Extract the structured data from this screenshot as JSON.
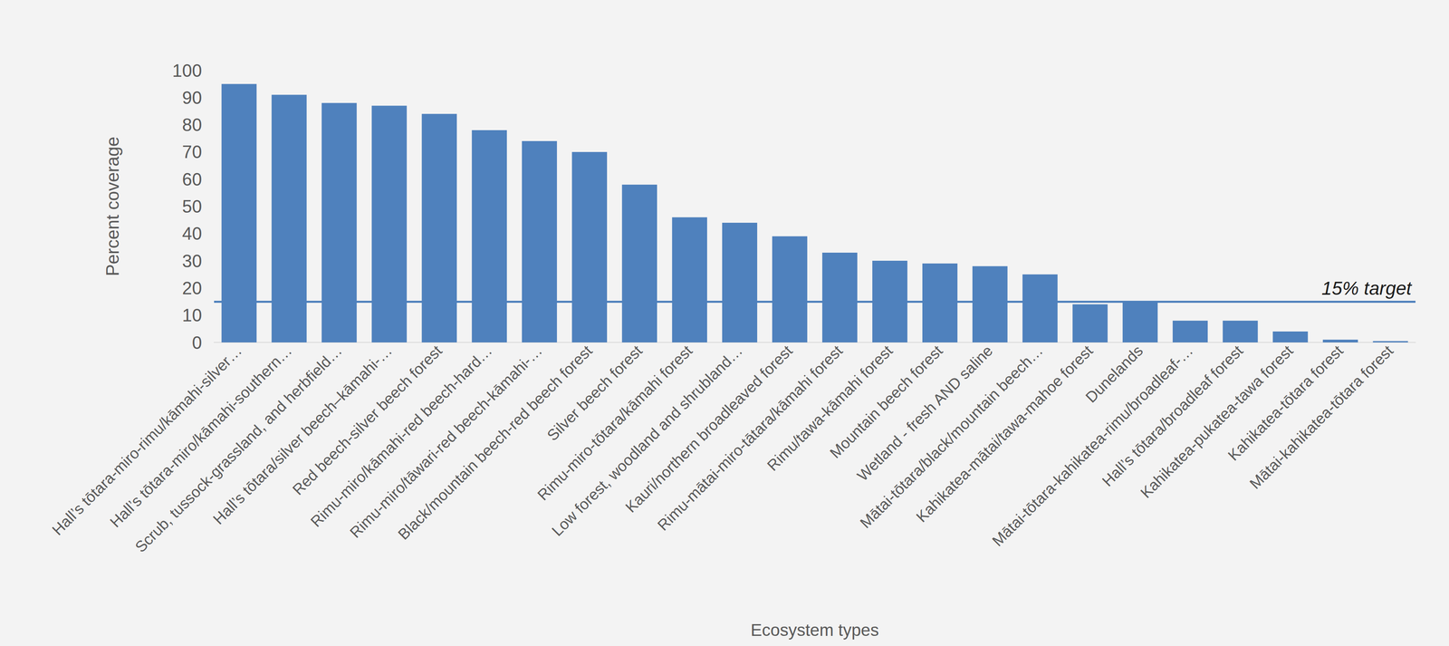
{
  "chart_data": {
    "type": "bar",
    "x_label": "Ecosystem types",
    "y_label": "Percent coverage",
    "categories": [
      "Hall’s tōtara-miro-rimu/kāmahi-silver…",
      "Hall’s tōtara-miro/kāmahi-southern…",
      "Scrub, tussock-grassland, and herbfield…",
      "Hall’s tōtara/silver beech–kāmahi-…",
      "Red beech-silver beech forest",
      "Rimu-miro/kāmahi-red beech-hard…",
      "Rimu-miro/tāwari-red beech-kāmahi-…",
      "Black/mountain beech-red beech forest",
      "Silver beech forest",
      "Rimu-miro-tōtara/kāmahi forest",
      "Low forest, woodland and shrubland…",
      "Kauri/northern broadleaved forest",
      "Rimu-mātai-miro-tātara/kāmahi forest",
      "Rimu/tawa-kāmahi forest",
      "Mountain beech forest",
      "Wetland - fresh AND saline",
      "Mātai-tōtara/black/mountain beech…",
      "Kahikatea-mātai/tawa-mahoe forest",
      "Dunelands",
      "Mātai-tōtara-kahikatea-rimu/broadleaf-…",
      "Hall’s tōtara/broadleaf forest",
      "Kahikatea-pukatea-tawa forest",
      "Kahikatea-tōtara forest",
      "Mātai-kahikatea-tōtara forest"
    ],
    "values": [
      95,
      91,
      88,
      87,
      84,
      78,
      74,
      70,
      58,
      46,
      44,
      39,
      33,
      30,
      29,
      28,
      25,
      14,
      15,
      8,
      8,
      4,
      1,
      0.5
    ],
    "color": "#4f81bd",
    "ylim": [
      0,
      100
    ],
    "yticks": [
      0,
      10,
      20,
      30,
      40,
      50,
      60,
      70,
      80,
      90,
      100
    ],
    "grid": false,
    "annotations": [
      {
        "text": "15% target",
        "y": 15,
        "color": "#4f81bd"
      }
    ]
  }
}
